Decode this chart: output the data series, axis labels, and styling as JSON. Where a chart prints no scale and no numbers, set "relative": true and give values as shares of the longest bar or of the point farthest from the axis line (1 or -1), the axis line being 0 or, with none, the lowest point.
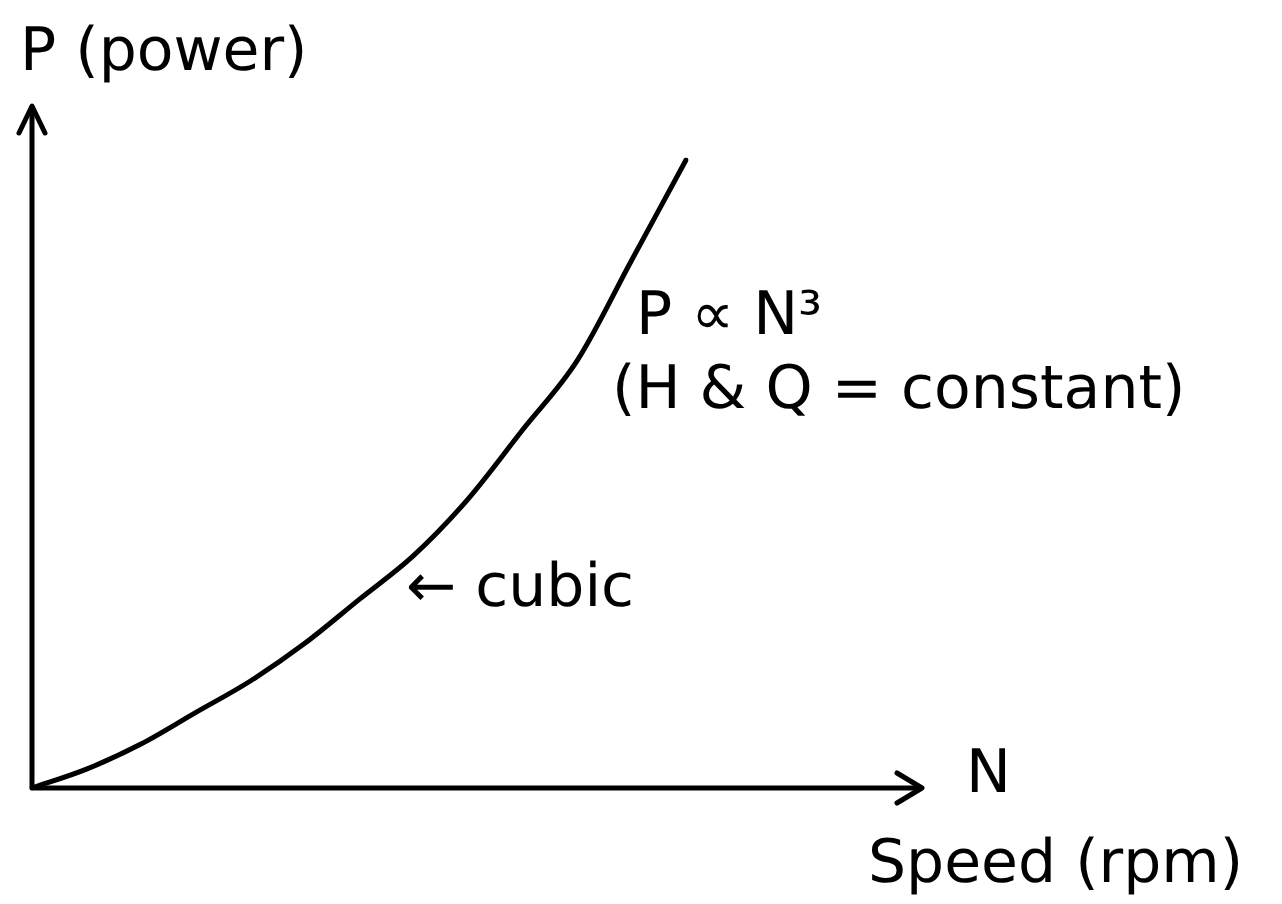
{
  "chart_data": {
    "type": "line",
    "ylabel": "P (power)",
    "xlabel": "N",
    "annotations": [
      "P ∝ N³",
      "(H & Q = constant)",
      "← cubic",
      "Speed (rpm)"
    ],
    "categories": [
      null,
      null,
      null,
      null,
      null,
      null,
      null,
      null,
      null,
      null,
      null,
      null,
      null
    ],
    "series": [
      {
        "color": "#000000",
        "values": [
          0,
          0.03,
          0.07,
          0.12,
          0.17,
          0.23,
          0.3,
          0.37,
          0.46,
          0.57,
          0.68,
          0.84,
          1
        ]
      }
    ],
    "relative": true,
    "tick_labels": false,
    "grid": false,
    "legend": false,
    "marker": "none",
    "line_style": "solid"
  }
}
